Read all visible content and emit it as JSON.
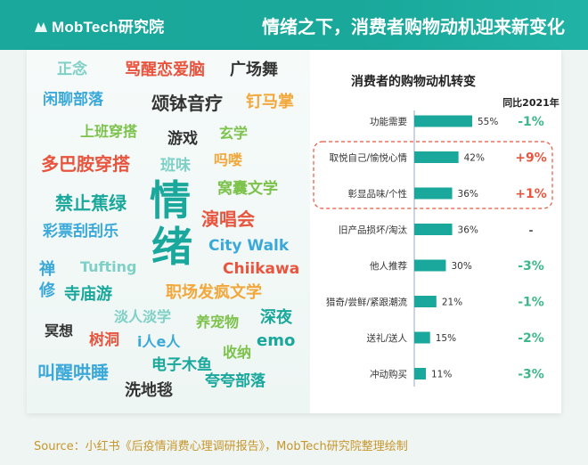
{
  "header": {
    "logo_text": "MobTech研究院",
    "title": "情绪之下，消费者购物动机迎来新变化"
  },
  "word_cloud": [
    {
      "text": "正念",
      "color": "#7fd0c6",
      "size": 17
    },
    {
      "text": "骂醒恋爱脑",
      "color": "#e8553f",
      "size": 18
    },
    {
      "text": "广场舞",
      "color": "#333333",
      "size": 18
    },
    {
      "text": "闲聊部落",
      "color": "#3aa8d8",
      "size": 17
    },
    {
      "text": "颂钵音疗",
      "color": "#333333",
      "size": 20
    },
    {
      "text": "钉马掌",
      "color": "#f2a73b",
      "size": 18
    },
    {
      "text": "上班穿搭",
      "color": "#7cc24b",
      "size": 16
    },
    {
      "text": "游戏",
      "color": "#333333",
      "size": 17
    },
    {
      "text": "玄学",
      "color": "#7cc24b",
      "size": 16
    },
    {
      "text": "多巴胺穿搭",
      "color": "#e8553f",
      "size": 20
    },
    {
      "text": "班味",
      "color": "#7fd0c6",
      "size": 17
    },
    {
      "text": "吗喽",
      "color": "#f2a73b",
      "size": 16
    },
    {
      "text": "禁止蕉绿",
      "color": "#1aa79c",
      "size": 20
    },
    {
      "text": "情",
      "color": "#1aa79c",
      "size": 46
    },
    {
      "text": "窝囊文学",
      "color": "#7cc24b",
      "size": 17
    },
    {
      "text": "彩票刮刮乐",
      "color": "#3aa8d8",
      "size": 17
    },
    {
      "text": "演唱会",
      "color": "#e8553f",
      "size": 20
    },
    {
      "text": "绪",
      "color": "#1aa79c",
      "size": 46
    },
    {
      "text": "City Walk",
      "color": "#3aa8d8",
      "size": 17
    },
    {
      "text": "禅",
      "color": "#3aa8d8",
      "size": 18
    },
    {
      "text": "Tufting",
      "color": "#7fd0c6",
      "size": 16
    },
    {
      "text": "Chiikawa",
      "color": "#e8553f",
      "size": 17
    },
    {
      "text": "修",
      "color": "#3aa8d8",
      "size": 18
    },
    {
      "text": "寺庙游",
      "color": "#1aa79c",
      "size": 18
    },
    {
      "text": "职场发疯文学",
      "color": "#f2a73b",
      "size": 18
    },
    {
      "text": "淡人淡学",
      "color": "#7fd0c6",
      "size": 16
    },
    {
      "text": "冥想",
      "color": "#333333",
      "size": 16
    },
    {
      "text": "养宠物",
      "color": "#7cc24b",
      "size": 16
    },
    {
      "text": "深夜",
      "color": "#1aa79c",
      "size": 18
    },
    {
      "text": "树洞",
      "color": "#e8553f",
      "size": 17
    },
    {
      "text": "i人e人",
      "color": "#3aa8d8",
      "size": 16
    },
    {
      "text": "emo",
      "color": "#1aa79c",
      "size": 18
    },
    {
      "text": "收纳",
      "color": "#7cc24b",
      "size": 16
    },
    {
      "text": "叫醒哄睡",
      "color": "#3aa8d8",
      "size": 20
    },
    {
      "text": "电子木鱼",
      "color": "#1aa79c",
      "size": 17
    },
    {
      "text": "洗地毯",
      "color": "#333333",
      "size": 18
    },
    {
      "text": "夸夸部落",
      "color": "#1aa79c",
      "size": 17
    }
  ],
  "chart_data": {
    "type": "bar",
    "title": "消费者的购物动机转变",
    "comparison_header": "同比2021年",
    "categories": [
      "功能需要",
      "取悦自己/愉悦心情",
      "彰显品味/个性",
      "旧产品损坏/淘汰",
      "他人推荐",
      "猎奇/尝鲜/紧跟潮流",
      "送礼/送人",
      "冲动购买"
    ],
    "values": [
      55,
      42,
      36,
      36,
      30,
      21,
      15,
      11
    ],
    "value_labels": [
      "55%",
      "42%",
      "36%",
      "36%",
      "30%",
      "21%",
      "15%",
      "11%"
    ],
    "yoy": [
      "-1%",
      "+9%",
      "+1%",
      "-",
      "-3%",
      "-1%",
      "-2%",
      "-3%"
    ],
    "xlim": [
      0,
      100
    ],
    "highlighted_categories": [
      "取悦自己/愉悦心情",
      "彰显品味/个性"
    ],
    "colors": {
      "bar": "#1aa79c",
      "positive": "#e8553f",
      "negative": "#3db88a",
      "neutral": "#555555"
    }
  },
  "source": "Source：小红书《后疫情消费心理调研报告》，MobTech研究院整理绘制"
}
